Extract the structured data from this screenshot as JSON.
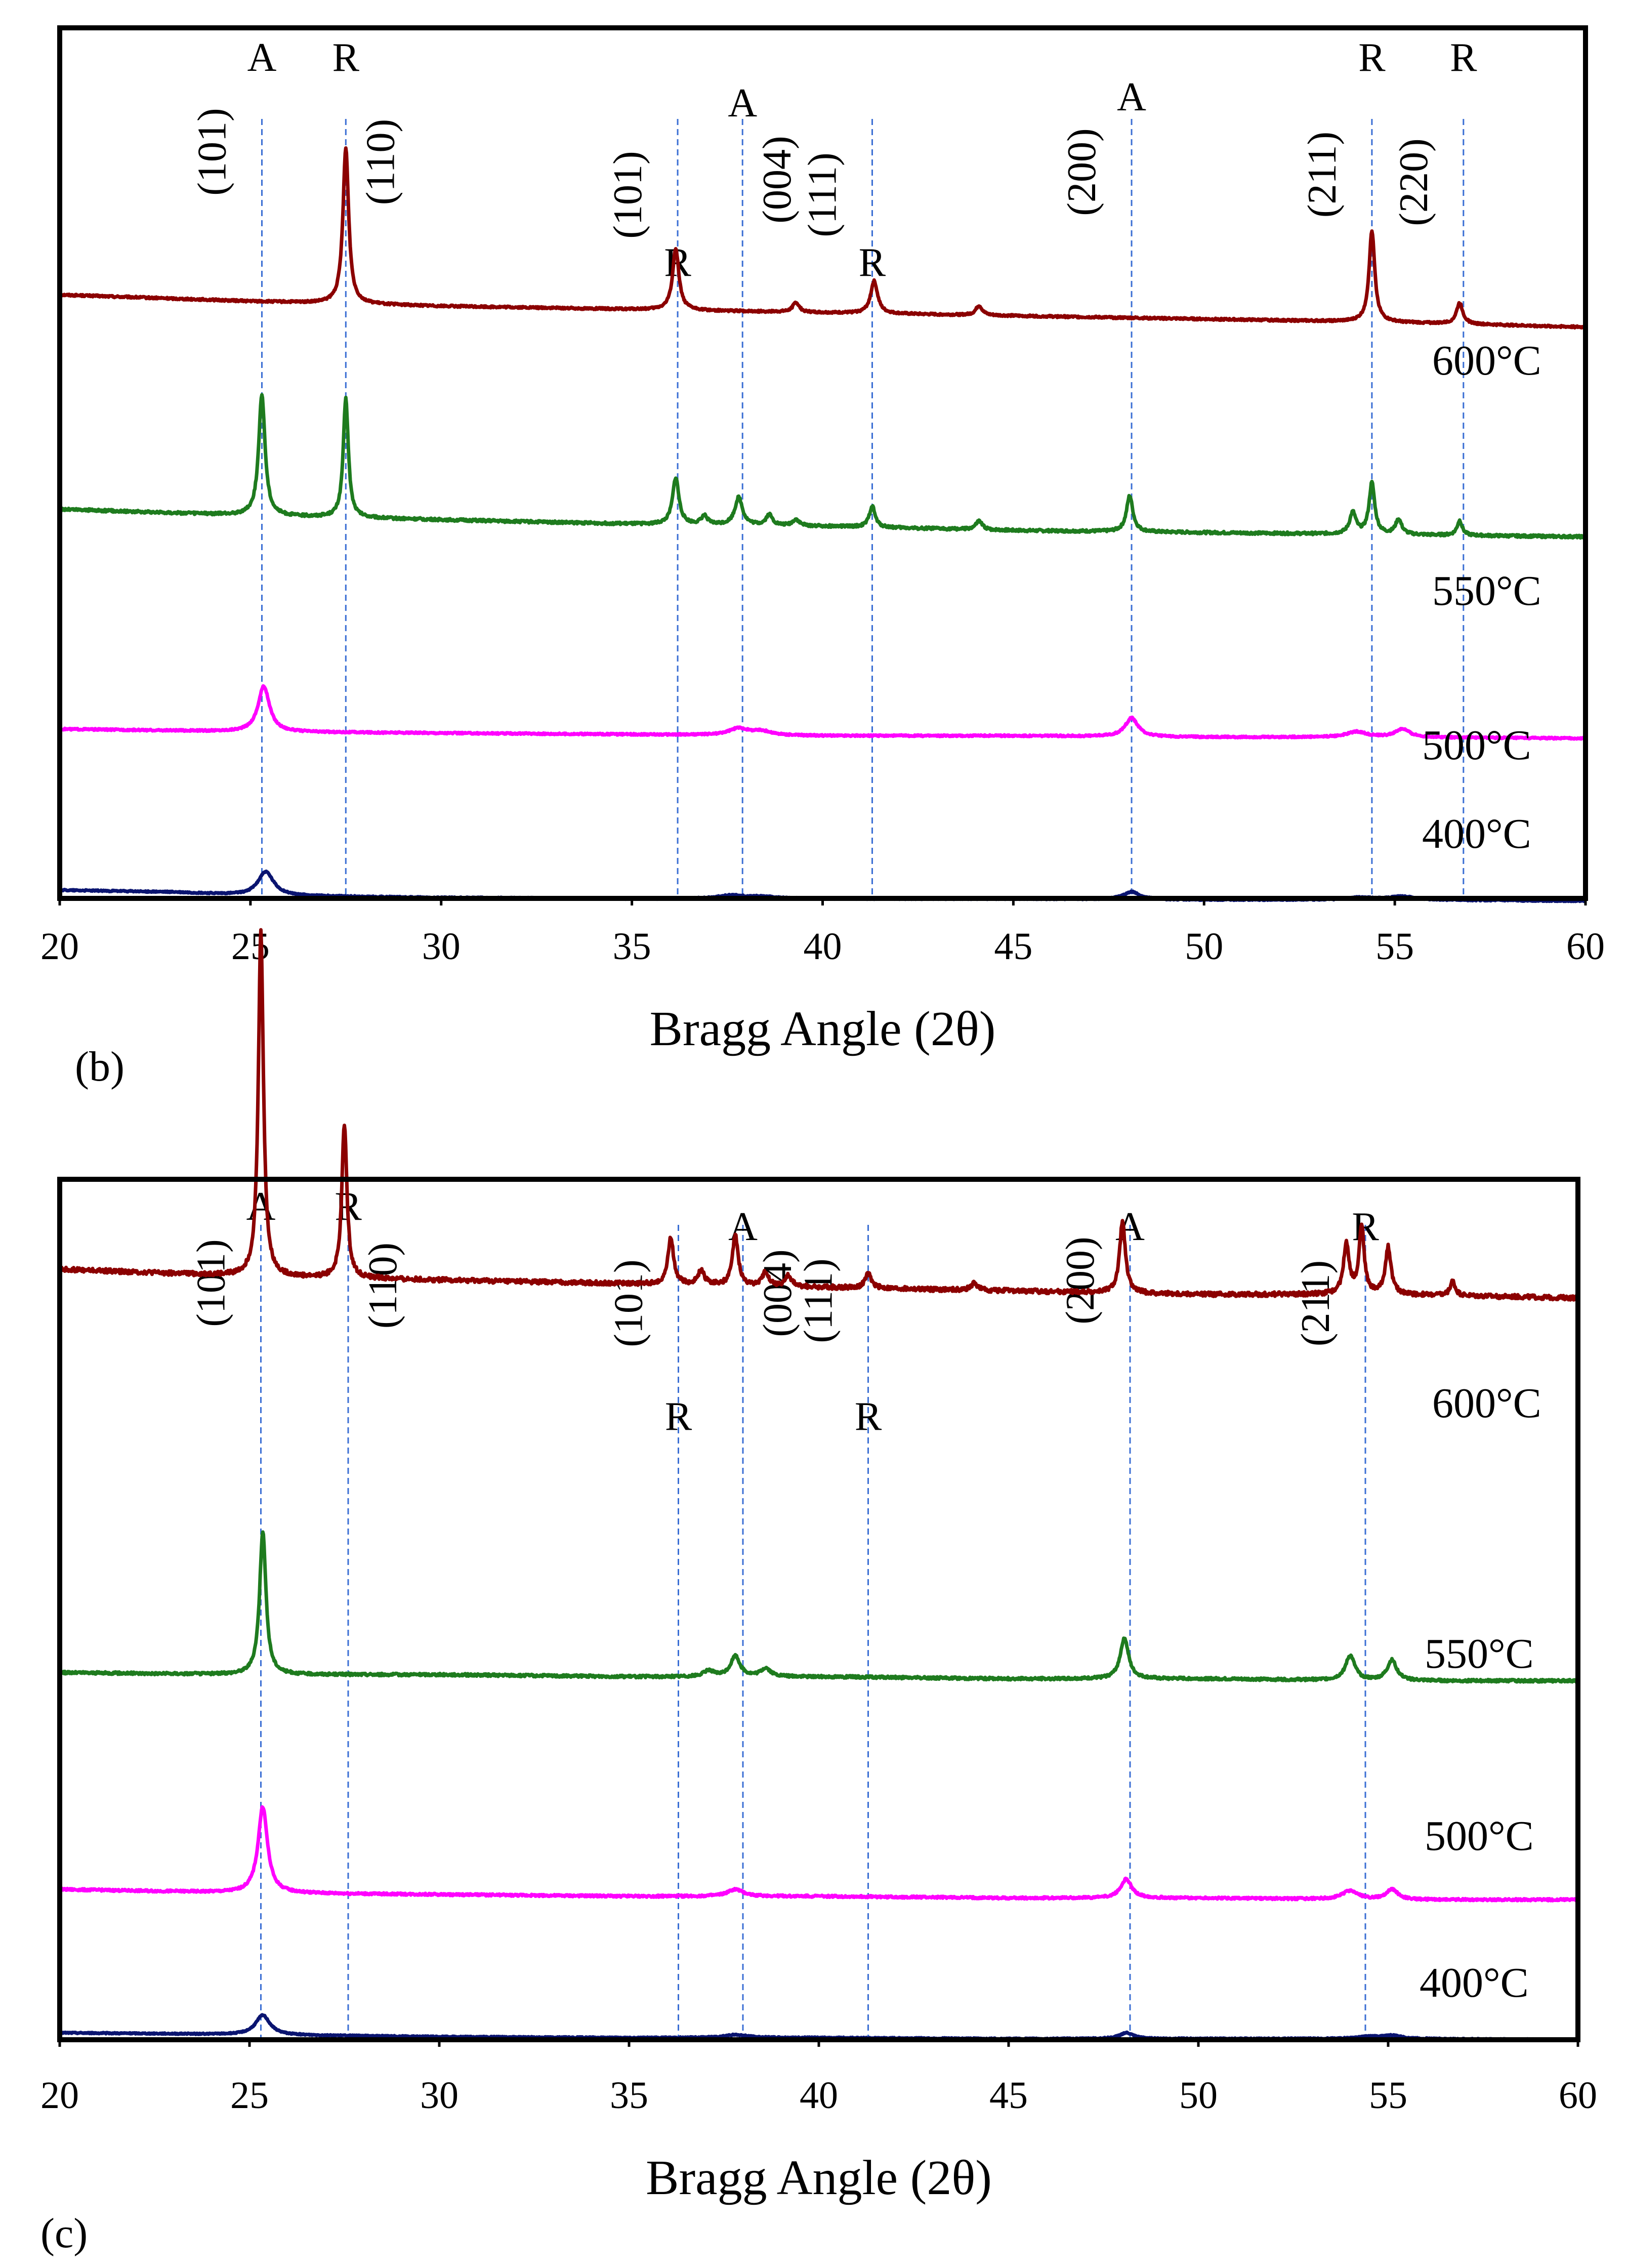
{
  "chart_data": [
    {
      "panel_label": "(b)",
      "type": "line",
      "xlabel": "Bragg Angle (2θ)",
      "ylabel": "",
      "xlim": [
        20,
        60
      ],
      "xticks": [
        "20",
        "25",
        "30",
        "35",
        "40",
        "45",
        "50",
        "55",
        "60"
      ],
      "grid": false,
      "series": [
        {
          "name": "600°C",
          "color": "#8B0000",
          "baseline": [
            [
              20,
              0.93
            ],
            [
              25,
              0.89
            ],
            [
              30,
              0.86
            ],
            [
              35,
              0.84
            ],
            [
              40,
              0.82
            ],
            [
              45,
              0.8
            ],
            [
              50,
              0.78
            ],
            [
              55,
              0.76
            ],
            [
              60,
              0.73
            ]
          ],
          "peaks": [
            [
              27.5,
              0.96,
              0.09
            ],
            [
              36.15,
              0.38,
              0.1
            ],
            [
              39.3,
              0.06,
              0.1
            ],
            [
              41.35,
              0.2,
              0.11
            ],
            [
              44.1,
              0.06,
              0.1
            ],
            [
              54.4,
              0.56,
              0.09
            ],
            [
              56.7,
              0.13,
              0.1
            ]
          ]
        },
        {
          "name": "550°C",
          "color": "#1E7B1E",
          "baseline": [
            [
              20,
              0.7
            ],
            [
              25,
              0.67
            ],
            [
              30,
              0.65
            ],
            [
              35,
              0.63
            ],
            [
              40,
              0.62
            ],
            [
              45,
              0.6
            ],
            [
              50,
              0.59
            ],
            [
              55,
              0.58
            ],
            [
              60,
              0.57
            ]
          ],
          "peaks": [
            [
              25.3,
              0.57,
              0.1
            ],
            [
              27.5,
              0.56,
              0.08
            ],
            [
              36.15,
              0.22,
              0.1
            ],
            [
              36.9,
              0.04,
              0.1
            ],
            [
              37.8,
              0.13,
              0.12
            ],
            [
              38.6,
              0.05,
              0.1
            ],
            [
              39.3,
              0.03,
              0.1
            ],
            [
              41.3,
              0.1,
              0.09
            ],
            [
              44.1,
              0.04,
              0.1
            ],
            [
              48.05,
              0.17,
              0.1
            ],
            [
              53.9,
              0.1,
              0.1
            ],
            [
              54.4,
              0.24,
              0.09
            ],
            [
              55.1,
              0.07,
              0.1
            ],
            [
              56.7,
              0.07,
              0.08
            ]
          ]
        },
        {
          "name": "500°C",
          "color": "#FF00FF",
          "baseline": [
            [
              20,
              0.47
            ],
            [
              25,
              0.45
            ],
            [
              30,
              0.44
            ],
            [
              35,
              0.43
            ],
            [
              40,
              0.42
            ],
            [
              45,
              0.42
            ],
            [
              50,
              0.41
            ],
            [
              55,
              0.41
            ],
            [
              60,
              0.4
            ]
          ],
          "peaks": [
            [
              25.35,
              0.34,
              0.18
            ],
            [
              37.8,
              0.05,
              0.3
            ],
            [
              38.4,
              0.03,
              0.3
            ],
            [
              48.1,
              0.14,
              0.2
            ],
            [
              54.0,
              0.04,
              0.3
            ],
            [
              55.2,
              0.06,
              0.22
            ]
          ]
        },
        {
          "name": "400°C",
          "color": "#0A1470",
          "baseline": [
            [
              20,
              0.1
            ],
            [
              23,
              0.08
            ],
            [
              25,
              0.05
            ],
            [
              30,
              0.03
            ],
            [
              35,
              0.02
            ],
            [
              40,
              0.02
            ],
            [
              45,
              0.02
            ],
            [
              50,
              0.01
            ],
            [
              55,
              0.01
            ],
            [
              60,
              0.0
            ]
          ],
          "peaks": [
            [
              25.4,
              0.22,
              0.25
            ],
            [
              37.6,
              0.03,
              0.4
            ],
            [
              38.4,
              0.02,
              0.4
            ],
            [
              48.1,
              0.07,
              0.25
            ],
            [
              54.1,
              0.02,
              0.4
            ],
            [
              55.2,
              0.03,
              0.4
            ]
          ]
        }
      ],
      "series_labels": [
        {
          "text": "600°C",
          "series": "600°C"
        },
        {
          "text": "550°C",
          "series": "550°C"
        },
        {
          "text": "500°C",
          "series": "500°C"
        },
        {
          "text": "400°C",
          "series": "400°C"
        }
      ],
      "reference_lines": [
        {
          "x": 25.3,
          "phase": "A",
          "hkl": "(101)"
        },
        {
          "x": 27.5,
          "phase": "R",
          "hkl": "(110)"
        },
        {
          "x": 36.2,
          "phase": "R",
          "hkl": "(101)"
        },
        {
          "x": 37.9,
          "phase": "A",
          "hkl": "(004)"
        },
        {
          "x": 41.3,
          "phase": "R",
          "hkl": "(111)"
        },
        {
          "x": 48.1,
          "phase": "A",
          "hkl": "(200)"
        },
        {
          "x": 54.4,
          "phase": "R",
          "hkl": "(211)"
        },
        {
          "x": 56.8,
          "phase": "R",
          "hkl": "(220)"
        }
      ]
    },
    {
      "panel_label": "(c)",
      "type": "line",
      "xlabel": "Bragg Angle (2θ)",
      "ylabel": "",
      "xlim": [
        20,
        60
      ],
      "xticks": [
        "20",
        "25",
        "30",
        "35",
        "40",
        "45",
        "50",
        "55",
        "60"
      ],
      "grid": false,
      "series": [
        {
          "name": "600°C",
          "color": "#8B0000",
          "baseline": [
            [
              20,
              0.82
            ],
            [
              25,
              0.8
            ],
            [
              30,
              0.79
            ],
            [
              35,
              0.78
            ],
            [
              40,
              0.77
            ],
            [
              45,
              0.76
            ],
            [
              50,
              0.75
            ],
            [
              55,
              0.75
            ],
            [
              60,
              0.74
            ]
          ],
          "peaks": [
            [
              25.3,
              0.96,
              0.08
            ],
            [
              27.5,
              0.43,
              0.08
            ],
            [
              36.1,
              0.13,
              0.09
            ],
            [
              36.9,
              0.04,
              0.1
            ],
            [
              37.8,
              0.14,
              0.09
            ],
            [
              38.6,
              0.04,
              0.1
            ],
            [
              39.2,
              0.03,
              0.1
            ],
            [
              41.3,
              0.04,
              0.1
            ],
            [
              44.1,
              0.02,
              0.1
            ],
            [
              48.0,
              0.2,
              0.09
            ],
            [
              53.9,
              0.14,
              0.09
            ],
            [
              54.3,
              0.19,
              0.08
            ],
            [
              55.0,
              0.13,
              0.09
            ],
            [
              56.7,
              0.04,
              0.08
            ]
          ]
        },
        {
          "name": "550°C",
          "color": "#1E7B1E",
          "baseline": [
            [
              20,
              0.47
            ],
            [
              25,
              0.46
            ],
            [
              30,
              0.46
            ],
            [
              35,
              0.45
            ],
            [
              40,
              0.45
            ],
            [
              45,
              0.44
            ],
            [
              50,
              0.44
            ],
            [
              55,
              0.43
            ],
            [
              60,
              0.43
            ]
          ],
          "peaks": [
            [
              25.35,
              0.7,
              0.1
            ],
            [
              37.1,
              0.03,
              0.15
            ],
            [
              37.8,
              0.1,
              0.15
            ],
            [
              38.6,
              0.04,
              0.15
            ],
            [
              48.05,
              0.2,
              0.13
            ],
            [
              54.0,
              0.12,
              0.15
            ],
            [
              55.1,
              0.1,
              0.15
            ]
          ]
        },
        {
          "name": "500°C",
          "color": "#FF00FF",
          "baseline": [
            [
              20,
              0.3
            ],
            [
              25,
              0.28
            ],
            [
              30,
              0.27
            ],
            [
              35,
              0.26
            ],
            [
              40,
              0.26
            ],
            [
              45,
              0.25
            ],
            [
              50,
              0.25
            ],
            [
              55,
              0.24
            ],
            [
              60,
              0.24
            ]
          ],
          "peaks": [
            [
              25.35,
              0.5,
              0.15
            ],
            [
              37.8,
              0.04,
              0.25
            ],
            [
              48.1,
              0.11,
              0.17
            ],
            [
              54.0,
              0.05,
              0.25
            ],
            [
              55.1,
              0.06,
              0.18
            ]
          ]
        },
        {
          "name": "400°C",
          "color": "#0A1470",
          "baseline": [
            [
              20,
              0.07
            ],
            [
              23,
              0.06
            ],
            [
              25,
              0.05
            ],
            [
              30,
              0.03
            ],
            [
              35,
              0.02
            ],
            [
              40,
              0.02
            ],
            [
              45,
              0.01
            ],
            [
              50,
              0.01
            ],
            [
              55,
              0.01
            ],
            [
              60,
              0.0
            ]
          ],
          "peaks": [
            [
              25.35,
              0.2,
              0.23
            ],
            [
              37.8,
              0.03,
              0.4
            ],
            [
              48.1,
              0.06,
              0.22
            ],
            [
              54.5,
              0.02,
              0.4
            ],
            [
              55.1,
              0.03,
              0.3
            ]
          ]
        }
      ],
      "series_labels": [
        {
          "text": "600°C",
          "series": "600°C"
        },
        {
          "text": "550°C",
          "series": "550°C"
        },
        {
          "text": "500°C",
          "series": "500°C"
        },
        {
          "text": "400°C",
          "series": "400°C"
        }
      ],
      "reference_lines": [
        {
          "x": 25.3,
          "phase": "A",
          "hkl": "(101)"
        },
        {
          "x": 27.6,
          "phase": "R",
          "hkl": "(110)"
        },
        {
          "x": 36.3,
          "phase": "R",
          "hkl": "(101)"
        },
        {
          "x": 38.0,
          "phase": "A",
          "hkl": "(004)"
        },
        {
          "x": 41.3,
          "phase": "R",
          "hkl": "(111)"
        },
        {
          "x": 48.2,
          "phase": "A",
          "hkl": "(200)"
        },
        {
          "x": 54.4,
          "phase": "R",
          "hkl": "(211)"
        }
      ]
    }
  ]
}
